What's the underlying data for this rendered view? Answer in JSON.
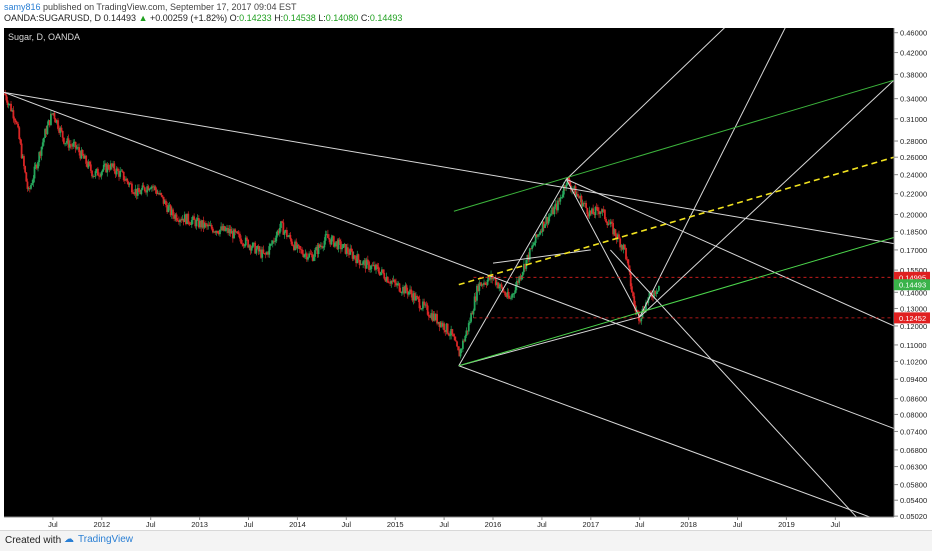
{
  "header": {
    "user": "samy816",
    "published": "published on TradingView.com, September 17, 2017 09:04 EST",
    "symbol": "OANDA:SUGARUSD, D",
    "price": "0.14493",
    "change_arrow": "▲",
    "change": "+0.00259 (+1.82%)",
    "o_label": "O:",
    "o": "0.14233",
    "h_label": "H:",
    "h": "0.14538",
    "l_label": "L:",
    "l": "0.14080",
    "c_label": "C:",
    "c": "0.14493"
  },
  "footer": {
    "created": "Created with",
    "brand": "TradingView",
    "logo_icon": "tradingview-cloud-icon"
  },
  "chart_data": {
    "type": "line",
    "title": "Sugar, D, OANDA",
    "scale": "log",
    "ylim": [
      0.05,
      0.47
    ],
    "xlim": [
      2011.0,
      2020.1
    ],
    "y_ticks": [
      "0.46000",
      "0.42000",
      "0.38000",
      "0.34000",
      "0.31000",
      "0.28000",
      "0.26000",
      "0.24000",
      "0.22000",
      "0.20000",
      "0.18500",
      "0.17000",
      "0.15500",
      "0.14000",
      "0.13000",
      "0.12000",
      "0.11000",
      "0.10200",
      "0.09400",
      "0.08600",
      "0.08000",
      "0.07400",
      "0.06800",
      "0.06300",
      "0.05800",
      "0.05400",
      "0.05020"
    ],
    "x_ticks": [
      {
        "label": "Jul",
        "t": 2011.5
      },
      {
        "label": "2012",
        "t": 2012.0
      },
      {
        "label": "Jul",
        "t": 2012.5
      },
      {
        "label": "2013",
        "t": 2013.0
      },
      {
        "label": "Jul",
        "t": 2013.5
      },
      {
        "label": "2014",
        "t": 2014.0
      },
      {
        "label": "Jul",
        "t": 2014.5
      },
      {
        "label": "2015",
        "t": 2015.0
      },
      {
        "label": "Jul",
        "t": 2015.5
      },
      {
        "label": "2016",
        "t": 2016.0
      },
      {
        "label": "Jul",
        "t": 2016.5
      },
      {
        "label": "2017",
        "t": 2017.0
      },
      {
        "label": "Jul",
        "t": 2017.5
      },
      {
        "label": "2018",
        "t": 2018.0
      },
      {
        "label": "Jul",
        "t": 2018.5
      },
      {
        "label": "2019",
        "t": 2019.0
      },
      {
        "label": "Jul",
        "t": 2019.5
      }
    ],
    "price_path": [
      [
        2011.0,
        0.35
      ],
      [
        2011.12,
        0.31
      ],
      [
        2011.25,
        0.22
      ],
      [
        2011.42,
        0.29
      ],
      [
        2011.5,
        0.32
      ],
      [
        2011.62,
        0.28
      ],
      [
        2011.75,
        0.27
      ],
      [
        2011.92,
        0.24
      ],
      [
        2012.08,
        0.25
      ],
      [
        2012.2,
        0.24
      ],
      [
        2012.37,
        0.22
      ],
      [
        2012.5,
        0.23
      ],
      [
        2012.58,
        0.22
      ],
      [
        2012.72,
        0.2
      ],
      [
        2012.9,
        0.195
      ],
      [
        2013.1,
        0.188
      ],
      [
        2013.3,
        0.185
      ],
      [
        2013.5,
        0.175
      ],
      [
        2013.67,
        0.165
      ],
      [
        2013.83,
        0.19
      ],
      [
        2014.0,
        0.17
      ],
      [
        2014.15,
        0.165
      ],
      [
        2014.3,
        0.18
      ],
      [
        2014.5,
        0.17
      ],
      [
        2014.67,
        0.16
      ],
      [
        2014.83,
        0.155
      ],
      [
        2015.0,
        0.145
      ],
      [
        2015.15,
        0.14
      ],
      [
        2015.3,
        0.13
      ],
      [
        2015.5,
        0.12
      ],
      [
        2015.58,
        0.115
      ],
      [
        2015.65,
        0.105
      ],
      [
        2015.75,
        0.12
      ],
      [
        2015.85,
        0.145
      ],
      [
        2016.0,
        0.15
      ],
      [
        2016.17,
        0.135
      ],
      [
        2016.33,
        0.16
      ],
      [
        2016.5,
        0.19
      ],
      [
        2016.67,
        0.21
      ],
      [
        2016.75,
        0.235
      ],
      [
        2016.85,
        0.22
      ],
      [
        2017.0,
        0.2
      ],
      [
        2017.1,
        0.205
      ],
      [
        2017.2,
        0.19
      ],
      [
        2017.35,
        0.17
      ],
      [
        2017.45,
        0.13
      ],
      [
        2017.5,
        0.125
      ],
      [
        2017.58,
        0.135
      ],
      [
        2017.7,
        0.1449
      ]
    ],
    "series": [
      {
        "color": "#26a65b",
        "down_color": "#d92626"
      }
    ],
    "price_lines": [
      {
        "label": "0.14995",
        "value": 0.14995,
        "color": "#e02020"
      },
      {
        "label": "0.14493",
        "value": 0.14493,
        "color": "#3ab34a"
      },
      {
        "label": "0.12452",
        "value": 0.12452,
        "color": "#e02020"
      }
    ],
    "trendlines": [
      {
        "from": [
          2011.0,
          0.35
        ],
        "to": [
          2020.1,
          0.175
        ],
        "color": "#d8d8d8"
      },
      {
        "from": [
          2011.0,
          0.35
        ],
        "to": [
          2020.1,
          0.075
        ],
        "color": "#d8d8d8"
      },
      {
        "from": [
          2015.65,
          0.1
        ],
        "to": [
          2020.1,
          0.048
        ],
        "color": "#d8d8d8"
      },
      {
        "from": [
          2015.65,
          0.1
        ],
        "to": [
          2016.75,
          0.235
        ],
        "color": "#d8d8d8"
      },
      {
        "from": [
          2015.65,
          0.1
        ],
        "to": [
          2017.5,
          0.125
        ],
        "color": "#d8d8d8"
      },
      {
        "from": [
          2016.75,
          0.235
        ],
        "to": [
          2017.5,
          0.125
        ],
        "color": "#d8d8d8"
      },
      {
        "from": [
          2016.75,
          0.235
        ],
        "to": [
          2018.6,
          0.52
        ],
        "color": "#d8d8d8"
      },
      {
        "from": [
          2017.5,
          0.125
        ],
        "to": [
          2019.1,
          0.52
        ],
        "color": "#d8d8d8"
      },
      {
        "from": [
          2017.5,
          0.125
        ],
        "to": [
          2020.1,
          0.37
        ],
        "color": "#d8d8d8"
      },
      {
        "from": [
          2016.75,
          0.235
        ],
        "to": [
          2020.1,
          0.12
        ],
        "color": "#d8d8d8"
      },
      {
        "from": [
          2017.2,
          0.17
        ],
        "to": [
          2019.8,
          0.048
        ],
        "color": "#d8d8d8"
      },
      {
        "from": [
          2016.0,
          0.16
        ],
        "to": [
          2017.0,
          0.17
        ],
        "color": "#d8d8d8"
      },
      {
        "from": [
          2015.65,
          0.1
        ],
        "to": [
          2020.1,
          0.18
        ],
        "color": "#4cd64c"
      },
      {
        "from": [
          2015.6,
          0.203
        ],
        "to": [
          2020.1,
          0.37
        ],
        "color": "#3cb43c"
      },
      {
        "from": [
          2015.65,
          0.145
        ],
        "to": [
          2020.1,
          0.26
        ],
        "color": "#f2e31f",
        "dashed": true
      }
    ]
  }
}
